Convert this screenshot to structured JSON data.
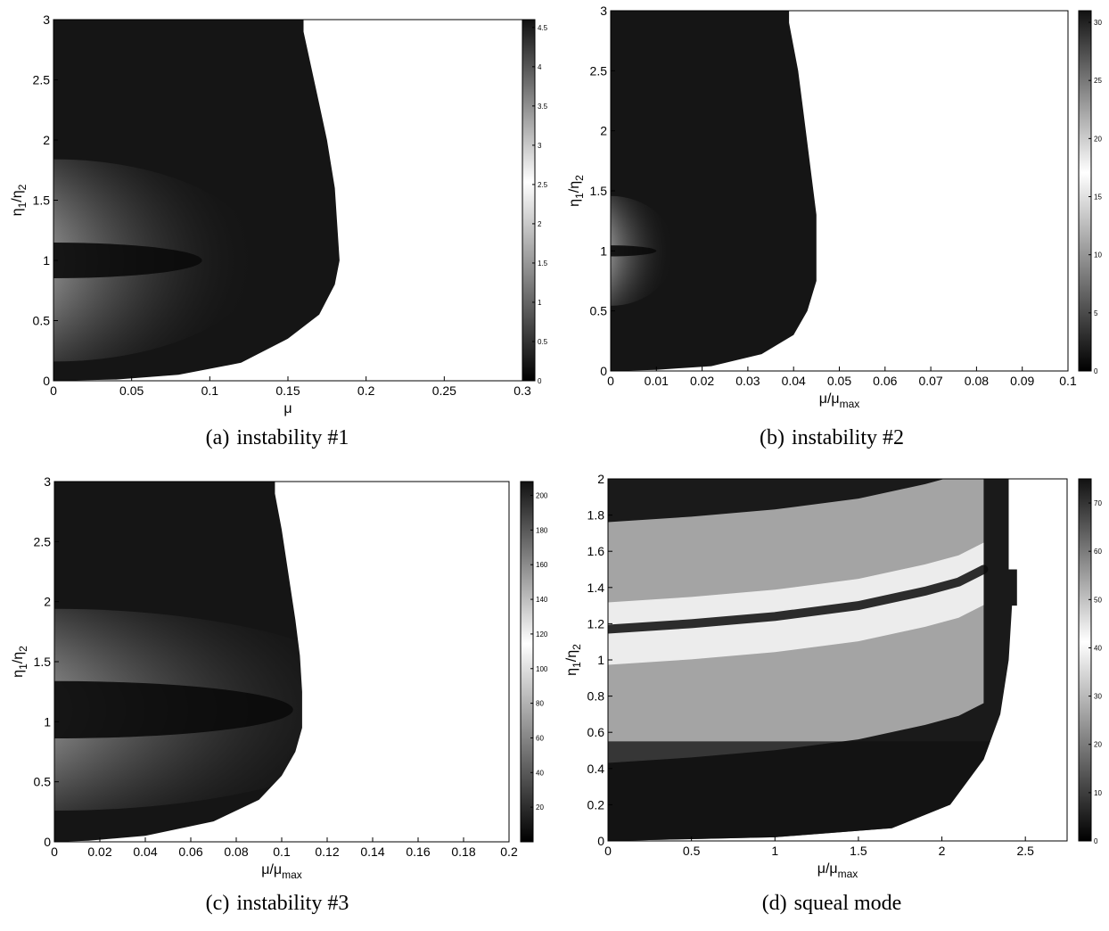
{
  "chart_data": [
    {
      "type": "heatmap",
      "tag": "(a)",
      "caption": "instability #1",
      "xlabel": "μ",
      "xlabel_sub": "",
      "ylabel": "η",
      "ylabel_sub1": "1",
      "ylabel_sub2": "2",
      "xlim": [
        0,
        0.3
      ],
      "ylim": [
        0,
        3
      ],
      "xticks": [
        0,
        0.05,
        0.1,
        0.15,
        0.2,
        0.25,
        0.3
      ],
      "xtick_labels": [
        "0",
        "0.05",
        "0.1",
        "0.15",
        "0.2",
        "0.25",
        "0.3"
      ],
      "yticks": [
        0,
        0.5,
        1,
        1.5,
        2,
        2.5,
        3
      ],
      "ytick_labels": [
        "0",
        "0.5",
        "1",
        "1.5",
        "2",
        "2.5",
        "3"
      ],
      "colorbar_range": [
        0,
        4.6
      ],
      "colorbar_ticks": [
        0,
        0.5,
        1,
        1.5,
        2,
        2.5,
        3,
        3.5,
        4,
        4.5
      ],
      "colorbar_labels": [
        "0",
        "0.5",
        "1",
        "1.5",
        "2",
        "2.5",
        "3",
        "3.5",
        "4",
        "4.5"
      ],
      "region_boundary": [
        [
          0,
          3
        ],
        [
          0.16,
          3
        ],
        [
          0.16,
          2.9
        ],
        [
          0.165,
          2.6
        ],
        [
          0.17,
          2.3
        ],
        [
          0.175,
          2.0
        ],
        [
          0.18,
          1.6
        ],
        [
          0.183,
          1.0
        ],
        [
          0.18,
          0.8
        ],
        [
          0.17,
          0.55
        ],
        [
          0.15,
          0.35
        ],
        [
          0.12,
          0.15
        ],
        [
          0.08,
          0.05
        ],
        [
          0.04,
          0.01
        ],
        [
          0,
          0
        ]
      ],
      "ridge": {
        "y": 1.0,
        "end_x": 0.095
      }
    },
    {
      "type": "heatmap",
      "tag": "(b)",
      "caption": "instability #2",
      "xlabel": "μ/μ",
      "xlabel_sub": "max",
      "ylabel": "η",
      "ylabel_sub1": "1",
      "ylabel_sub2": "2",
      "xlim": [
        0,
        0.1
      ],
      "ylim": [
        0,
        3
      ],
      "xticks": [
        0,
        0.01,
        0.02,
        0.03,
        0.04,
        0.05,
        0.06,
        0.07,
        0.08,
        0.09,
        0.1
      ],
      "xtick_labels": [
        "0",
        "0.01",
        "0.02",
        "0.03",
        "0.04",
        "0.05",
        "0.06",
        "0.07",
        "0.08",
        "0.09",
        "0.1"
      ],
      "yticks": [
        0,
        0.5,
        1,
        1.5,
        2,
        2.5,
        3
      ],
      "ytick_labels": [
        "0",
        "0.5",
        "1",
        "1.5",
        "2",
        "2.5",
        "3"
      ],
      "colorbar_range": [
        0,
        31
      ],
      "colorbar_ticks": [
        0,
        5,
        10,
        15,
        20,
        25,
        30
      ],
      "colorbar_labels": [
        "0",
        "5",
        "10",
        "15",
        "20",
        "25",
        "30"
      ],
      "region_boundary": [
        [
          0,
          3
        ],
        [
          0.039,
          3
        ],
        [
          0.039,
          2.9
        ],
        [
          0.041,
          2.5
        ],
        [
          0.042,
          2.2
        ],
        [
          0.043,
          1.9
        ],
        [
          0.044,
          1.6
        ],
        [
          0.045,
          1.3
        ],
        [
          0.045,
          1.0
        ],
        [
          0.045,
          0.75
        ],
        [
          0.043,
          0.5
        ],
        [
          0.04,
          0.3
        ],
        [
          0.033,
          0.14
        ],
        [
          0.022,
          0.04
        ],
        [
          0.01,
          0.01
        ],
        [
          0,
          0
        ]
      ],
      "ridge": {
        "y": 1.0,
        "end_x": 0.01
      }
    },
    {
      "type": "heatmap",
      "tag": "(c)",
      "caption": "instability #3",
      "xlabel": "μ/μ",
      "xlabel_sub": "max",
      "ylabel": "η",
      "ylabel_sub1": "1",
      "ylabel_sub2": "2",
      "xlim": [
        0,
        0.2
      ],
      "ylim": [
        0,
        3
      ],
      "xticks": [
        0,
        0.02,
        0.04,
        0.06,
        0.08,
        0.1,
        0.12,
        0.14,
        0.16,
        0.18,
        0.2
      ],
      "xtick_labels": [
        "0",
        "0.02",
        "0.04",
        "0.06",
        "0.08",
        "0.1",
        "0.12",
        "0.14",
        "0.16",
        "0.18",
        "0.2"
      ],
      "yticks": [
        0,
        0.5,
        1,
        1.5,
        2,
        2.5,
        3
      ],
      "ytick_labels": [
        "0",
        "0.5",
        "1",
        "1.5",
        "2",
        "2.5",
        "3"
      ],
      "colorbar_range": [
        0,
        208
      ],
      "colorbar_ticks": [
        20,
        40,
        60,
        80,
        100,
        120,
        140,
        160,
        180,
        200
      ],
      "colorbar_labels": [
        "20",
        "40",
        "60",
        "80",
        "100",
        "120",
        "140",
        "160",
        "180",
        "200"
      ],
      "region_boundary": [
        [
          0,
          3
        ],
        [
          0.097,
          3
        ],
        [
          0.097,
          2.9
        ],
        [
          0.1,
          2.6
        ],
        [
          0.102,
          2.35
        ],
        [
          0.104,
          2.1
        ],
        [
          0.106,
          1.85
        ],
        [
          0.108,
          1.55
        ],
        [
          0.109,
          1.25
        ],
        [
          0.109,
          0.95
        ],
        [
          0.106,
          0.75
        ],
        [
          0.1,
          0.55
        ],
        [
          0.09,
          0.35
        ],
        [
          0.07,
          0.17
        ],
        [
          0.04,
          0.05
        ],
        [
          0.015,
          0.01
        ],
        [
          0,
          0
        ]
      ],
      "ridge": {
        "y": 1.1,
        "end_x": 0.105
      }
    },
    {
      "type": "heatmap",
      "tag": "(d)",
      "caption": "squeal mode",
      "xlabel": "μ/μ",
      "xlabel_sub": "max",
      "ylabel": "η",
      "ylabel_sub1": "1",
      "ylabel_sub2": "2",
      "xlim": [
        0,
        2.75
      ],
      "ylim": [
        0,
        2
      ],
      "xticks": [
        0,
        0.5,
        1,
        1.5,
        2,
        2.5
      ],
      "xtick_labels": [
        "0",
        "0.5",
        "1",
        "1.5",
        "2",
        "2.5"
      ],
      "yticks": [
        0,
        0.2,
        0.4,
        0.6,
        0.8,
        1,
        1.2,
        1.4,
        1.6,
        1.8,
        2
      ],
      "ytick_labels": [
        "0",
        "0.2",
        "0.4",
        "0.6",
        "0.8",
        "1",
        "1.2",
        "1.4",
        "1.6",
        "1.8",
        "2"
      ],
      "colorbar_range": [
        0,
        75
      ],
      "colorbar_ticks": [
        0,
        10,
        20,
        30,
        40,
        50,
        60,
        70
      ],
      "colorbar_labels": [
        "0",
        "10",
        "20",
        "30",
        "40",
        "50",
        "60",
        "70"
      ],
      "region_boundary": [
        [
          0,
          2
        ],
        [
          2.4,
          2
        ],
        [
          2.4,
          1.5
        ],
        [
          2.45,
          1.5
        ],
        [
          2.45,
          1.3
        ],
        [
          2.42,
          1.3
        ],
        [
          2.4,
          1.0
        ],
        [
          2.35,
          0.7
        ],
        [
          2.25,
          0.45
        ],
        [
          2.05,
          0.2
        ],
        [
          1.7,
          0.07
        ],
        [
          1.0,
          0.02
        ],
        [
          0.5,
          0.01
        ],
        [
          0,
          0
        ]
      ],
      "ridge_curve": [
        [
          0,
          1.17
        ],
        [
          0.5,
          1.2
        ],
        [
          1.0,
          1.24
        ],
        [
          1.5,
          1.3
        ],
        [
          1.9,
          1.38
        ],
        [
          2.1,
          1.43
        ],
        [
          2.25,
          1.5
        ]
      ]
    }
  ]
}
